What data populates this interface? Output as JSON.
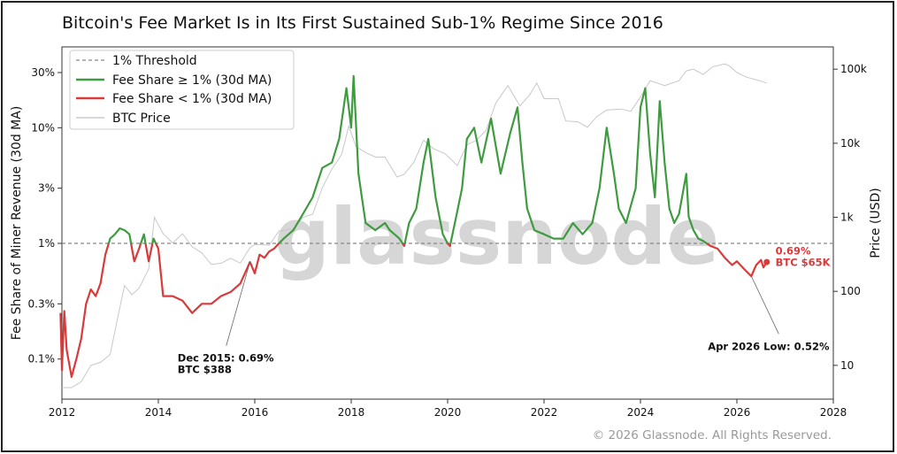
{
  "chart_data": {
    "type": "line",
    "title": "Bitcoin's Fee Market Is in Its First Sustained Sub-1% Regime Since 2016",
    "ylabel_left": "Fee Share of Miner Revenue (30d MA)",
    "ylabel_right": "Price (USD)",
    "x_ticks": [
      "2012",
      "2014",
      "2016",
      "2018",
      "2020",
      "2022",
      "2024",
      "2026",
      "2028"
    ],
    "y_ticks_left": [
      "0.1%",
      "0.3%",
      "1%",
      "3%",
      "10%",
      "30%"
    ],
    "y_ticks_right": [
      "10",
      "100",
      "1k",
      "10k",
      "100k"
    ],
    "xlim": [
      2012,
      2028
    ],
    "ylim_left_pct": [
      0.045,
      50
    ],
    "ylim_right_usd": [
      3.5,
      200000
    ],
    "y_scale": "log",
    "threshold_pct": 1,
    "legend": {
      "placement": "top-left",
      "entries": [
        {
          "label": "1% Threshold",
          "color": "#888888",
          "style": "dashed"
        },
        {
          "label": "Fee Share ≥ 1% (30d MA)",
          "color": "#3f9b3f",
          "style": "solid"
        },
        {
          "label": "Fee Share < 1% (30d MA)",
          "color": "#d93a3a",
          "style": "solid"
        },
        {
          "label": "BTC Price",
          "color": "#c0c0c0",
          "style": "solid"
        }
      ]
    },
    "colors": {
      "above": "#3f9b3f",
      "below": "#d93a3a",
      "price": "#c8c8c8",
      "threshold": "#888888"
    },
    "series": [
      {
        "name": "Fee Share (30d MA)",
        "unit": "percent",
        "points": [
          [
            2011.97,
            0.25
          ],
          [
            2012.0,
            0.08
          ],
          [
            2012.05,
            0.26
          ],
          [
            2012.1,
            0.12
          ],
          [
            2012.2,
            0.07
          ],
          [
            2012.3,
            0.1
          ],
          [
            2012.4,
            0.15
          ],
          [
            2012.5,
            0.3
          ],
          [
            2012.6,
            0.4
          ],
          [
            2012.7,
            0.35
          ],
          [
            2012.8,
            0.45
          ],
          [
            2012.9,
            0.8
          ],
          [
            2013.0,
            1.1
          ],
          [
            2013.1,
            1.2
          ],
          [
            2013.2,
            1.35
          ],
          [
            2013.3,
            1.3
          ],
          [
            2013.4,
            1.2
          ],
          [
            2013.5,
            0.7
          ],
          [
            2013.6,
            0.9
          ],
          [
            2013.7,
            1.2
          ],
          [
            2013.8,
            0.7
          ],
          [
            2013.9,
            1.1
          ],
          [
            2014.0,
            0.9
          ],
          [
            2014.1,
            0.35
          ],
          [
            2014.3,
            0.35
          ],
          [
            2014.5,
            0.32
          ],
          [
            2014.7,
            0.25
          ],
          [
            2014.9,
            0.3
          ],
          [
            2015.1,
            0.3
          ],
          [
            2015.3,
            0.35
          ],
          [
            2015.5,
            0.38
          ],
          [
            2015.7,
            0.45
          ],
          [
            2015.9,
            0.69
          ],
          [
            2016.0,
            0.55
          ],
          [
            2016.1,
            0.8
          ],
          [
            2016.2,
            0.75
          ],
          [
            2016.3,
            0.85
          ],
          [
            2016.4,
            0.9
          ],
          [
            2016.5,
            1.0
          ],
          [
            2016.6,
            1.1
          ],
          [
            2016.8,
            1.3
          ],
          [
            2017.0,
            1.8
          ],
          [
            2017.2,
            2.5
          ],
          [
            2017.4,
            4.5
          ],
          [
            2017.6,
            5.0
          ],
          [
            2017.75,
            8.0
          ],
          [
            2017.9,
            22.0
          ],
          [
            2018.0,
            10.0
          ],
          [
            2018.05,
            28.0
          ],
          [
            2018.15,
            4.0
          ],
          [
            2018.3,
            1.5
          ],
          [
            2018.5,
            1.3
          ],
          [
            2018.7,
            1.5
          ],
          [
            2018.8,
            1.3
          ],
          [
            2019.0,
            1.1
          ],
          [
            2019.1,
            0.95
          ],
          [
            2019.2,
            1.5
          ],
          [
            2019.35,
            2.0
          ],
          [
            2019.5,
            5.0
          ],
          [
            2019.6,
            8.0
          ],
          [
            2019.75,
            2.5
          ],
          [
            2019.9,
            1.2
          ],
          [
            2020.0,
            1.0
          ],
          [
            2020.05,
            0.95
          ],
          [
            2020.15,
            1.5
          ],
          [
            2020.3,
            3.0
          ],
          [
            2020.4,
            8.0
          ],
          [
            2020.55,
            10.0
          ],
          [
            2020.7,
            5.0
          ],
          [
            2020.9,
            12.0
          ],
          [
            2021.1,
            4.0
          ],
          [
            2021.3,
            9.0
          ],
          [
            2021.45,
            15.0
          ],
          [
            2021.55,
            5.0
          ],
          [
            2021.65,
            2.0
          ],
          [
            2021.8,
            1.3
          ],
          [
            2022.0,
            1.2
          ],
          [
            2022.2,
            1.1
          ],
          [
            2022.4,
            1.1
          ],
          [
            2022.6,
            1.5
          ],
          [
            2022.8,
            1.2
          ],
          [
            2023.0,
            1.5
          ],
          [
            2023.15,
            3.0
          ],
          [
            2023.3,
            10.0
          ],
          [
            2023.45,
            4.0
          ],
          [
            2023.55,
            2.0
          ],
          [
            2023.7,
            1.5
          ],
          [
            2023.9,
            3.0
          ],
          [
            2024.0,
            15.0
          ],
          [
            2024.1,
            22.0
          ],
          [
            2024.2,
            6.0
          ],
          [
            2024.3,
            2.5
          ],
          [
            2024.4,
            17.0
          ],
          [
            2024.5,
            5.0
          ],
          [
            2024.6,
            2.0
          ],
          [
            2024.7,
            1.5
          ],
          [
            2024.8,
            1.8
          ],
          [
            2024.95,
            4.0
          ],
          [
            2025.0,
            1.7
          ],
          [
            2025.1,
            1.3
          ],
          [
            2025.2,
            1.1
          ],
          [
            2025.3,
            1.05
          ],
          [
            2025.45,
            0.95
          ],
          [
            2025.6,
            0.9
          ],
          [
            2025.75,
            0.75
          ],
          [
            2025.9,
            0.65
          ],
          [
            2026.0,
            0.7
          ],
          [
            2026.15,
            0.6
          ],
          [
            2026.3,
            0.52
          ],
          [
            2026.4,
            0.65
          ],
          [
            2026.5,
            0.72
          ],
          [
            2026.55,
            0.62
          ],
          [
            2026.62,
            0.69
          ]
        ]
      },
      {
        "name": "BTC Price",
        "unit": "USD",
        "points": [
          [
            2012.0,
            5
          ],
          [
            2012.2,
            5
          ],
          [
            2012.4,
            6
          ],
          [
            2012.6,
            10
          ],
          [
            2012.8,
            11
          ],
          [
            2013.0,
            14
          ],
          [
            2013.2,
            60
          ],
          [
            2013.3,
            120
          ],
          [
            2013.45,
            90
          ],
          [
            2013.6,
            110
          ],
          [
            2013.8,
            200
          ],
          [
            2013.92,
            1000
          ],
          [
            2014.1,
            600
          ],
          [
            2014.3,
            450
          ],
          [
            2014.5,
            600
          ],
          [
            2014.7,
            400
          ],
          [
            2014.9,
            330
          ],
          [
            2015.1,
            230
          ],
          [
            2015.3,
            240
          ],
          [
            2015.5,
            280
          ],
          [
            2015.7,
            240
          ],
          [
            2015.9,
            388
          ],
          [
            2016.0,
            430
          ],
          [
            2016.3,
            420
          ],
          [
            2016.5,
            650
          ],
          [
            2016.8,
            700
          ],
          [
            2017.0,
            1000
          ],
          [
            2017.2,
            1100
          ],
          [
            2017.4,
            2500
          ],
          [
            2017.6,
            4500
          ],
          [
            2017.8,
            7000
          ],
          [
            2017.95,
            17000
          ],
          [
            2018.1,
            9000
          ],
          [
            2018.3,
            7500
          ],
          [
            2018.5,
            6500
          ],
          [
            2018.7,
            6500
          ],
          [
            2018.95,
            3500
          ],
          [
            2019.1,
            3800
          ],
          [
            2019.3,
            5500
          ],
          [
            2019.5,
            11000
          ],
          [
            2019.7,
            8500
          ],
          [
            2019.95,
            7200
          ],
          [
            2020.2,
            5000
          ],
          [
            2020.4,
            9500
          ],
          [
            2020.6,
            11000
          ],
          [
            2020.8,
            15000
          ],
          [
            2021.0,
            35000
          ],
          [
            2021.25,
            60000
          ],
          [
            2021.5,
            32000
          ],
          [
            2021.7,
            45000
          ],
          [
            2021.85,
            65000
          ],
          [
            2022.0,
            40000
          ],
          [
            2022.3,
            40000
          ],
          [
            2022.45,
            20000
          ],
          [
            2022.7,
            19500
          ],
          [
            2022.9,
            16500
          ],
          [
            2023.1,
            23000
          ],
          [
            2023.3,
            28000
          ],
          [
            2023.6,
            29000
          ],
          [
            2023.8,
            27000
          ],
          [
            2024.0,
            42000
          ],
          [
            2024.2,
            70000
          ],
          [
            2024.5,
            60000
          ],
          [
            2024.8,
            70000
          ],
          [
            2024.95,
            95000
          ],
          [
            2025.1,
            100000
          ],
          [
            2025.3,
            85000
          ],
          [
            2025.5,
            108000
          ],
          [
            2025.75,
            118000
          ],
          [
            2025.85,
            110000
          ],
          [
            2026.0,
            90000
          ],
          [
            2026.2,
            78000
          ],
          [
            2026.4,
            72000
          ],
          [
            2026.62,
            65000
          ]
        ]
      }
    ],
    "annotations": [
      {
        "lines": [
          "Dec 2015: 0.69%",
          "BTC $388"
        ],
        "point_x": 2015.9,
        "point_pct": 0.69,
        "text_x": 2014.4,
        "text_pct": 0.095,
        "color": "#111111",
        "anchor": "start"
      },
      {
        "lines": [
          "Apr 2026 Low: 0.52%"
        ],
        "point_x": 2026.3,
        "point_pct": 0.52,
        "text_x": 2025.4,
        "text_pct": 0.12,
        "color": "#111111",
        "anchor": "middle"
      },
      {
        "lines": [
          "0.69%",
          "BTC $65K"
        ],
        "point_x": 2026.62,
        "point_pct": 0.69,
        "text_x": 2026.8,
        "text_pct": 0.8,
        "color": "#d93a3a",
        "anchor": "start"
      }
    ],
    "watermark": "glassnode",
    "copyright": "© 2026 Glassnode. All Rights Reserved."
  }
}
